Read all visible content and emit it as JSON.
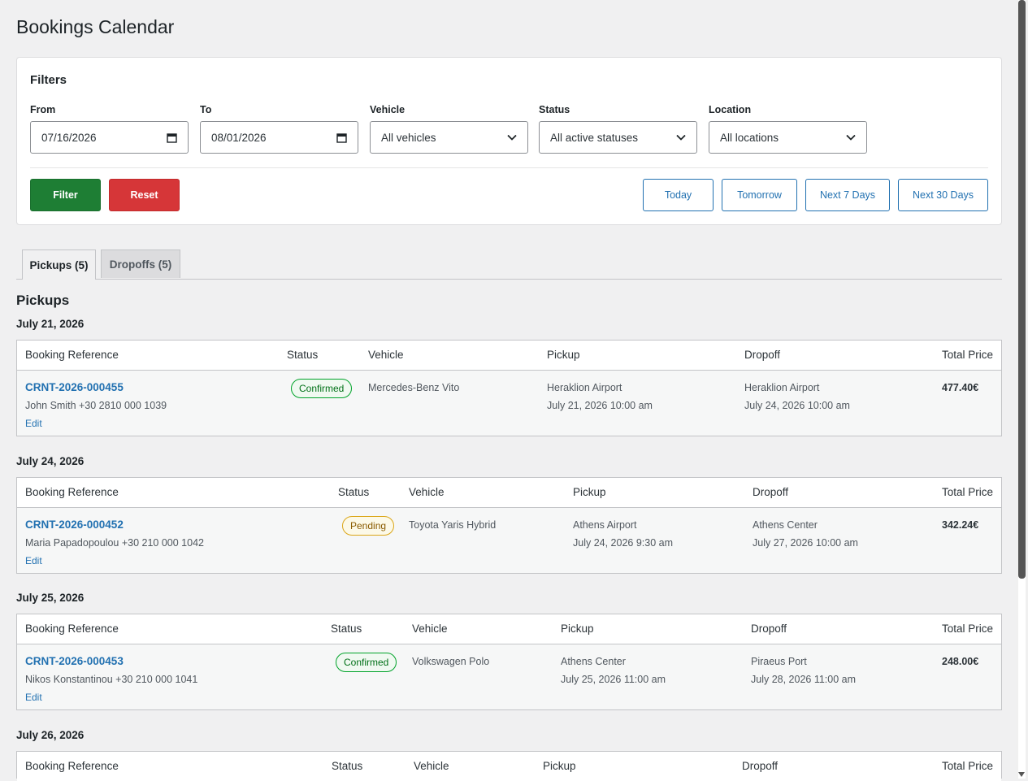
{
  "page": {
    "title": "Bookings Calendar"
  },
  "filters": {
    "heading": "Filters",
    "from": {
      "label": "From",
      "value": "07/16/2026"
    },
    "to": {
      "label": "To",
      "value": "08/01/2026"
    },
    "vehicle": {
      "label": "Vehicle",
      "value": "All vehicles"
    },
    "status": {
      "label": "Status",
      "value": "All active statuses"
    },
    "location": {
      "label": "Location",
      "value": "All locations"
    },
    "filter_label": "Filter",
    "reset_label": "Reset",
    "quick": {
      "today": "Today",
      "tomorrow": "Tomorrow",
      "next7": "Next 7 Days",
      "next30": "Next 30 Days"
    }
  },
  "tabs": {
    "pickups": "Pickups (5)",
    "dropoffs": "Dropoffs (5)"
  },
  "section_title": "Pickups",
  "columns": {
    "ref": "Booking Reference",
    "status": "Status",
    "vehicle": "Vehicle",
    "pickup": "Pickup",
    "dropoff": "Dropoff",
    "price": "Total Price"
  },
  "groups": [
    {
      "date": "July 21, 2026",
      "row": {
        "ref": "CRNT-2026-000455",
        "customer": "John Smith +30 2810 000 1039",
        "edit": "Edit",
        "status": "Confirmed",
        "vehicle": "Mercedes-Benz Vito",
        "pickup_loc": "Heraklion Airport",
        "pickup_time": "July 21, 2026 10:00 am",
        "dropoff_loc": "Heraklion Airport",
        "dropoff_time": "July 24, 2026 10:00 am",
        "price": "477.40€"
      }
    },
    {
      "date": "July 24, 2026",
      "row": {
        "ref": "CRNT-2026-000452",
        "customer": "Maria Papadopoulou +30 210 000 1042",
        "edit": "Edit",
        "status": "Pending",
        "vehicle": "Toyota Yaris Hybrid",
        "pickup_loc": "Athens Airport",
        "pickup_time": "July 24, 2026 9:30 am",
        "dropoff_loc": "Athens Center",
        "dropoff_time": "July 27, 2026 10:00 am",
        "price": "342.24€"
      }
    },
    {
      "date": "July 25, 2026",
      "row": {
        "ref": "CRNT-2026-000453",
        "customer": "Nikos Konstantinou +30 210 000 1041",
        "edit": "Edit",
        "status": "Confirmed",
        "vehicle": "Volkswagen Polo",
        "pickup_loc": "Athens Center",
        "pickup_time": "July 25, 2026 11:00 am",
        "dropoff_loc": "Piraeus Port",
        "dropoff_time": "July 28, 2026 11:00 am",
        "price": "248.00€"
      }
    },
    {
      "date": "July 26, 2026"
    }
  ],
  "colors": {
    "primary": "#2271b1",
    "filter": "#1e7e34",
    "reset": "#d63638",
    "confirmed": "#00a32a",
    "pending": "#dba617"
  },
  "icons": {
    "date": "calendar-icon",
    "select": "chevron-down-icon"
  }
}
